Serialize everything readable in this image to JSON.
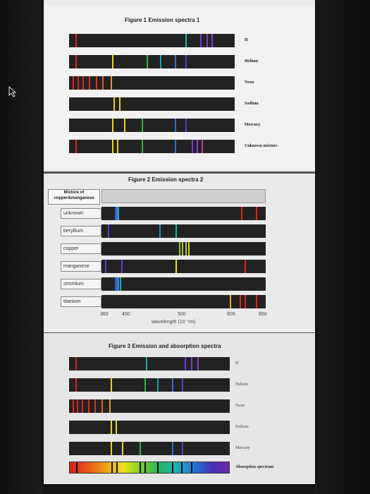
{
  "figure1": {
    "title": "Figure 1 Emission spectra 1",
    "rows": [
      {
        "label": "H",
        "lines": [
          {
            "pos": 0.04,
            "color": "#d8261f"
          },
          {
            "pos": 0.7,
            "color": "#19b3a0"
          },
          {
            "pos": 0.79,
            "color": "#6b3ad0"
          },
          {
            "pos": 0.83,
            "color": "#7a3ad0"
          },
          {
            "pos": 0.86,
            "color": "#8b3ad8"
          }
        ]
      },
      {
        "label": "Helium",
        "lines": [
          {
            "pos": 0.04,
            "color": "#d8261f"
          },
          {
            "pos": 0.26,
            "color": "#e8d41e"
          },
          {
            "pos": 0.47,
            "color": "#33b24a"
          },
          {
            "pos": 0.55,
            "color": "#1fa0a0"
          },
          {
            "pos": 0.64,
            "color": "#3a6fd8"
          },
          {
            "pos": 0.7,
            "color": "#5b3ad0"
          }
        ]
      },
      {
        "label": "Neon",
        "lines": [
          {
            "pos": 0.02,
            "color": "#d8261f"
          },
          {
            "pos": 0.05,
            "color": "#d8261f"
          },
          {
            "pos": 0.08,
            "color": "#d8261f"
          },
          {
            "pos": 0.12,
            "color": "#d8301f"
          },
          {
            "pos": 0.16,
            "color": "#d8351f"
          },
          {
            "pos": 0.2,
            "color": "#e0601e"
          },
          {
            "pos": 0.25,
            "color": "#e89a1e"
          }
        ]
      },
      {
        "label": "Sodium",
        "lines": [
          {
            "pos": 0.27,
            "color": "#e8d41e"
          },
          {
            "pos": 0.3,
            "color": "#e8d41e"
          }
        ]
      },
      {
        "label": "Mercury",
        "lines": [
          {
            "pos": 0.26,
            "color": "#e8d41e"
          },
          {
            "pos": 0.33,
            "color": "#e8d41e"
          },
          {
            "pos": 0.44,
            "color": "#33b24a"
          },
          {
            "pos": 0.64,
            "color": "#2a6fd8"
          },
          {
            "pos": 0.7,
            "color": "#5b3ad0"
          }
        ]
      },
      {
        "label": "Unknown mixture",
        "lines": [
          {
            "pos": 0.04,
            "color": "#d8261f"
          },
          {
            "pos": 0.26,
            "color": "#e8d41e"
          },
          {
            "pos": 0.29,
            "color": "#e8d41e"
          },
          {
            "pos": 0.44,
            "color": "#33b24a"
          },
          {
            "pos": 0.64,
            "color": "#2a6fd8"
          },
          {
            "pos": 0.74,
            "color": "#7a3ad0"
          },
          {
            "pos": 0.77,
            "color": "#8b3ad8"
          },
          {
            "pos": 0.8,
            "color": "#b33ac0"
          }
        ]
      }
    ]
  },
  "figure2": {
    "title": "Figure 2 Emission spectra 2",
    "mixture_label": "Mixture of copper&manganese",
    "rows": [
      {
        "label": "unknown",
        "lines": [
          {
            "pos": 0.08,
            "color": "#3a55d0"
          },
          {
            "pos": 0.09,
            "color": "#3a7ad0"
          },
          {
            "pos": 0.1,
            "color": "#2aa0c8"
          },
          {
            "pos": 0.85,
            "color": "#d8261f"
          },
          {
            "pos": 0.94,
            "color": "#d8261f"
          }
        ]
      },
      {
        "label": "beryllium",
        "lines": [
          {
            "pos": 0.04,
            "color": "#5b3ad0"
          },
          {
            "pos": 0.35,
            "color": "#1a8fc8"
          },
          {
            "pos": 0.45,
            "color": "#19b3a0"
          }
        ]
      },
      {
        "label": "copper",
        "lines": [
          {
            "pos": 0.47,
            "color": "#8fbf26"
          },
          {
            "pos": 0.49,
            "color": "#9fc726"
          },
          {
            "pos": 0.51,
            "color": "#b3cf26"
          },
          {
            "pos": 0.53,
            "color": "#c9d726"
          }
        ]
      },
      {
        "label": "manganese",
        "lines": [
          {
            "pos": 0.02,
            "color": "#5b3ad0"
          },
          {
            "pos": 0.12,
            "color": "#6a3ad0"
          },
          {
            "pos": 0.45,
            "color": "#e8e31e"
          },
          {
            "pos": 0.87,
            "color": "#d8261f"
          }
        ]
      },
      {
        "label": "strontium",
        "lines": [
          {
            "pos": 0.08,
            "color": "#3a55d0"
          },
          {
            "pos": 0.09,
            "color": "#3a6ad0"
          },
          {
            "pos": 0.1,
            "color": "#2a8fc8"
          },
          {
            "pos": 0.11,
            "color": "#2a9fc8"
          }
        ]
      },
      {
        "label": "titanium",
        "lines": [
          {
            "pos": 0.78,
            "color": "#e8b41e"
          },
          {
            "pos": 0.84,
            "color": "#d8261f"
          },
          {
            "pos": 0.87,
            "color": "#d8261f"
          },
          {
            "pos": 0.94,
            "color": "#d8261f"
          }
        ]
      }
    ],
    "ticks": [
      "360",
      "400",
      "500",
      "600",
      "660"
    ],
    "axis_title": "wavelength (10⁻⁹m)"
  },
  "figure3": {
    "title": "Figure 3 Emission and absorption spectra",
    "rows": [
      {
        "label": "H",
        "lines": [
          {
            "pos": 0.04,
            "color": "#d8261f"
          },
          {
            "pos": 0.48,
            "color": "#19b3a0"
          },
          {
            "pos": 0.72,
            "color": "#6b3ad0"
          },
          {
            "pos": 0.76,
            "color": "#7a3ad0"
          },
          {
            "pos": 0.8,
            "color": "#8b3ad8"
          }
        ]
      },
      {
        "label": "Helium",
        "lines": [
          {
            "pos": 0.04,
            "color": "#d8261f"
          },
          {
            "pos": 0.26,
            "color": "#e8d41e"
          },
          {
            "pos": 0.47,
            "color": "#33b24a"
          },
          {
            "pos": 0.55,
            "color": "#1fa0a0"
          },
          {
            "pos": 0.64,
            "color": "#3a6fd8"
          },
          {
            "pos": 0.7,
            "color": "#5b3ad0"
          }
        ]
      },
      {
        "label": "Neon",
        "lines": [
          {
            "pos": 0.02,
            "color": "#d8261f"
          },
          {
            "pos": 0.05,
            "color": "#d8261f"
          },
          {
            "pos": 0.08,
            "color": "#d8261f"
          },
          {
            "pos": 0.12,
            "color": "#d8301f"
          },
          {
            "pos": 0.16,
            "color": "#d8351f"
          },
          {
            "pos": 0.2,
            "color": "#e0601e"
          },
          {
            "pos": 0.25,
            "color": "#e89a1e"
          }
        ]
      },
      {
        "label": "Sodium",
        "lines": [
          {
            "pos": 0.26,
            "color": "#e8d41e"
          },
          {
            "pos": 0.29,
            "color": "#e8d41e"
          }
        ]
      },
      {
        "label": "Mercury",
        "lines": [
          {
            "pos": 0.26,
            "color": "#e8d41e"
          },
          {
            "pos": 0.33,
            "color": "#e8d41e"
          },
          {
            "pos": 0.44,
            "color": "#33b24a"
          },
          {
            "pos": 0.64,
            "color": "#2a6fd8"
          },
          {
            "pos": 0.7,
            "color": "#5b3ad0"
          }
        ]
      }
    ],
    "absorption_label": "Absorption spectrum",
    "absorption_lines": [
      0.04,
      0.26,
      0.29,
      0.44,
      0.47,
      0.55,
      0.64,
      0.7,
      0.76
    ]
  },
  "colors": {
    "band_dark": "#222222",
    "page": "#ececec",
    "background": "#161616"
  }
}
